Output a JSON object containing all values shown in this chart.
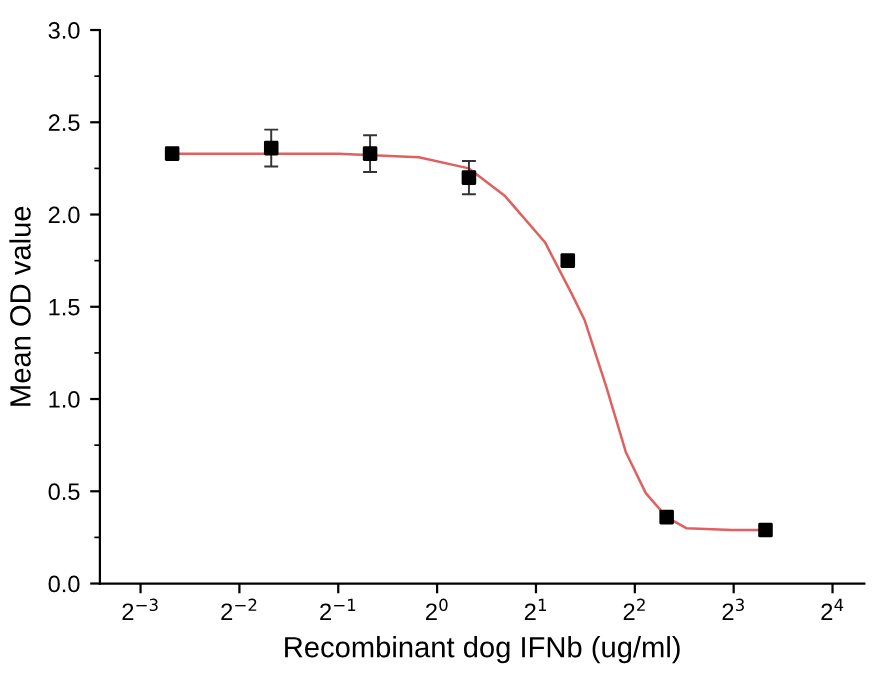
{
  "chart_data": {
    "type": "scatter",
    "xlabel": "Recombinant dog IFNb (ug/ml)",
    "ylabel": "Mean OD value",
    "log": "x",
    "xlim": [
      0.094,
      20
    ],
    "ylim": [
      0,
      3.0
    ],
    "xticks": [
      {
        "value": 0.125,
        "label": "2$^{−3}$"
      },
      {
        "value": 0.25,
        "label": "2$^{−2}$"
      },
      {
        "value": 0.5,
        "label": "2$^{−1}$"
      },
      {
        "value": 1,
        "label": "2$^{0}$"
      },
      {
        "value": 2,
        "label": "2$^{1}$"
      },
      {
        "value": 4,
        "label": "2$^{2}$"
      },
      {
        "value": 8,
        "label": "2$^{3}$"
      },
      {
        "value": 16,
        "label": "2$^{4}$"
      }
    ],
    "yticks": [
      {
        "value": 0,
        "label": "0.0"
      },
      {
        "value": 0.5,
        "label": "0.5"
      },
      {
        "value": 1,
        "label": "1.0"
      },
      {
        "value": 1.5,
        "label": "1.5"
      },
      {
        "value": 2,
        "label": "2.0"
      },
      {
        "value": 2.5,
        "label": "2.5"
      },
      {
        "value": 3,
        "label": "3.0"
      }
    ],
    "grid": false,
    "legend": false,
    "series": [
      {
        "type": "line",
        "color": "#e06060",
        "marker": "none",
        "line_style": "solid",
        "x": [
          0.156,
          0.5,
          0.88,
          1.25,
          1.61,
          2.13,
          2.57,
          2.81,
          3.27,
          3.76,
          4.32,
          5,
          5.74,
          7.9,
          10
        ],
        "values": [
          2.33,
          2.33,
          2.31,
          2.25,
          2.1,
          1.85,
          1.57,
          1.43,
          1.07,
          0.71,
          0.49,
          0.36,
          0.3,
          0.29,
          0.29
        ]
      },
      {
        "color": "#000000",
        "marker": "square",
        "x": [
          0.156,
          0.3125,
          0.625,
          1.25,
          2.5,
          5,
          10
        ],
        "values": [
          2.33,
          2.36,
          2.33,
          2.2,
          1.75,
          0.36,
          0.29
        ],
        "errors": [
          null,
          0.1,
          0.1,
          0.09,
          0.03,
          null,
          null
        ]
      }
    ]
  }
}
